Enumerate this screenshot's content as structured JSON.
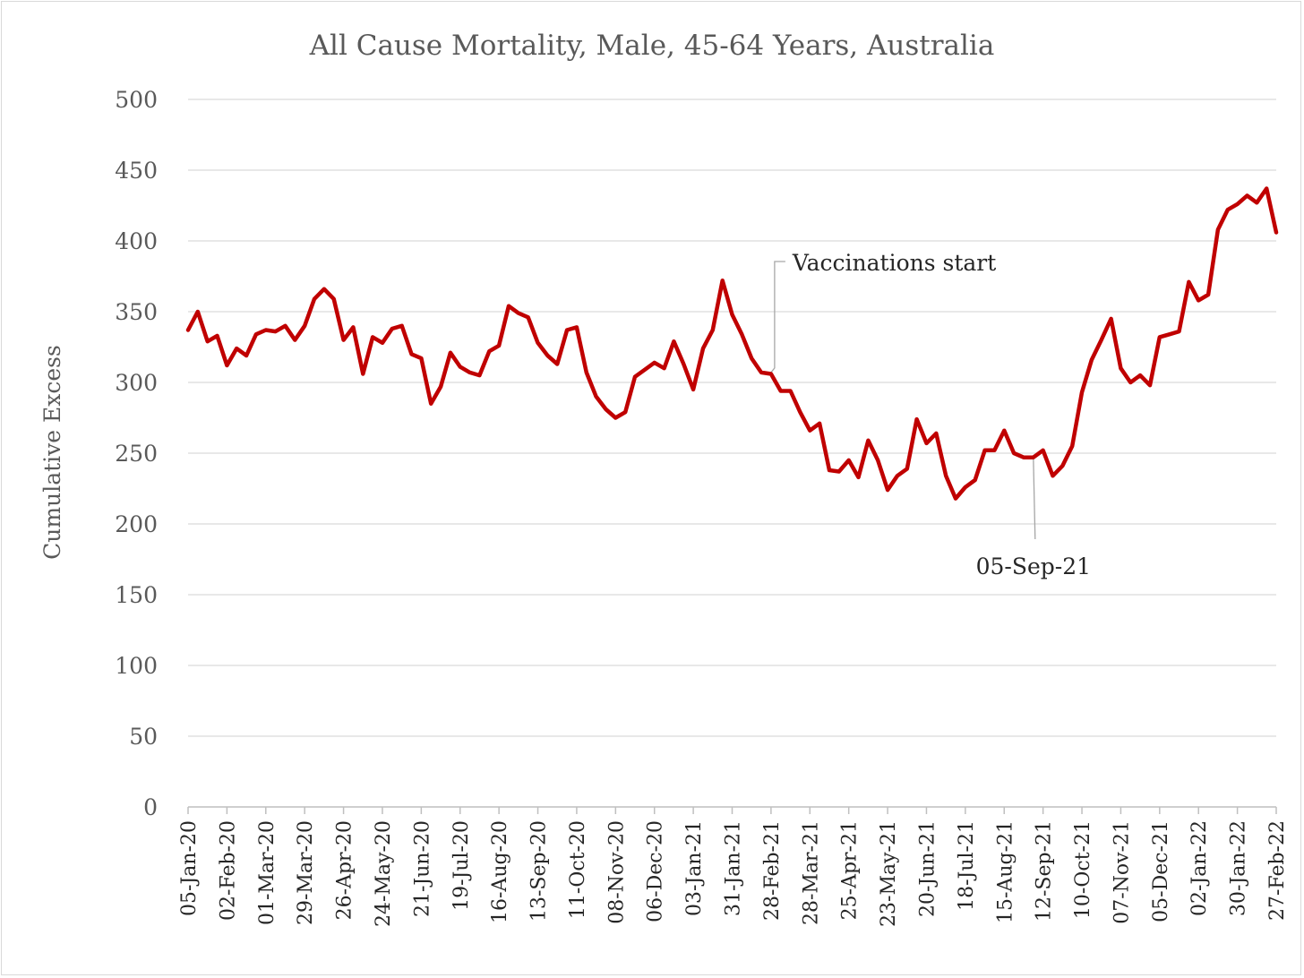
{
  "chart_data": {
    "type": "line",
    "title": "All Cause Mortality, Male, 45-64 Years, Australia",
    "xlabel": "",
    "ylabel": "Cumulative Excess",
    "ylim": [
      0,
      500
    ],
    "yticks": [
      0,
      50,
      100,
      150,
      200,
      250,
      300,
      350,
      400,
      450,
      500
    ],
    "grid": true,
    "legend": "none",
    "line_color": "#C00000",
    "xtick_labels": [
      "05-Jan-20",
      "02-Feb-20",
      "01-Mar-20",
      "29-Mar-20",
      "26-Apr-20",
      "24-May-20",
      "21-Jun-20",
      "19-Jul-20",
      "16-Aug-20",
      "13-Sep-20",
      "11-Oct-20",
      "08-Nov-20",
      "06-Dec-20",
      "03-Jan-21",
      "31-Jan-21",
      "28-Feb-21",
      "28-Mar-21",
      "25-Apr-21",
      "23-May-21",
      "20-Jun-21",
      "18-Jul-21",
      "15-Aug-21",
      "12-Sep-21",
      "10-Oct-21",
      "07-Nov-21",
      "05-Dec-21",
      "02-Jan-22",
      "30-Jan-22",
      "27-Feb-22"
    ],
    "series": [
      {
        "values": [
          337,
          350,
          329,
          333,
          312,
          324,
          319,
          334,
          337,
          336,
          340,
          330,
          340,
          359,
          366,
          359,
          330,
          339,
          306,
          332,
          328,
          338,
          340,
          320,
          317,
          285,
          297,
          321,
          311,
          307,
          305,
          322,
          326,
          354,
          349,
          346,
          328,
          319,
          313,
          337,
          339,
          307,
          290,
          281,
          275,
          279,
          304,
          309,
          314,
          310,
          329,
          313,
          295,
          324,
          337,
          372,
          348,
          334,
          317,
          307,
          306,
          294,
          294,
          279,
          266,
          271,
          238,
          237,
          245,
          233,
          259,
          245,
          224,
          234,
          239,
          274,
          257,
          264,
          234,
          218,
          226,
          231,
          252,
          252,
          266,
          250,
          247,
          247,
          252,
          234,
          241,
          255,
          293,
          316,
          330,
          345,
          310,
          300,
          305,
          298,
          332,
          334,
          336,
          371,
          358,
          362,
          408,
          422,
          426,
          432,
          427,
          437,
          406
        ]
      }
    ],
    "annotations": [
      {
        "text": "Vaccinations start",
        "x": "28-Feb-21",
        "y": 307
      },
      {
        "text": "05-Sep-21",
        "x": "05-Sep-21",
        "y": 247
      }
    ]
  }
}
